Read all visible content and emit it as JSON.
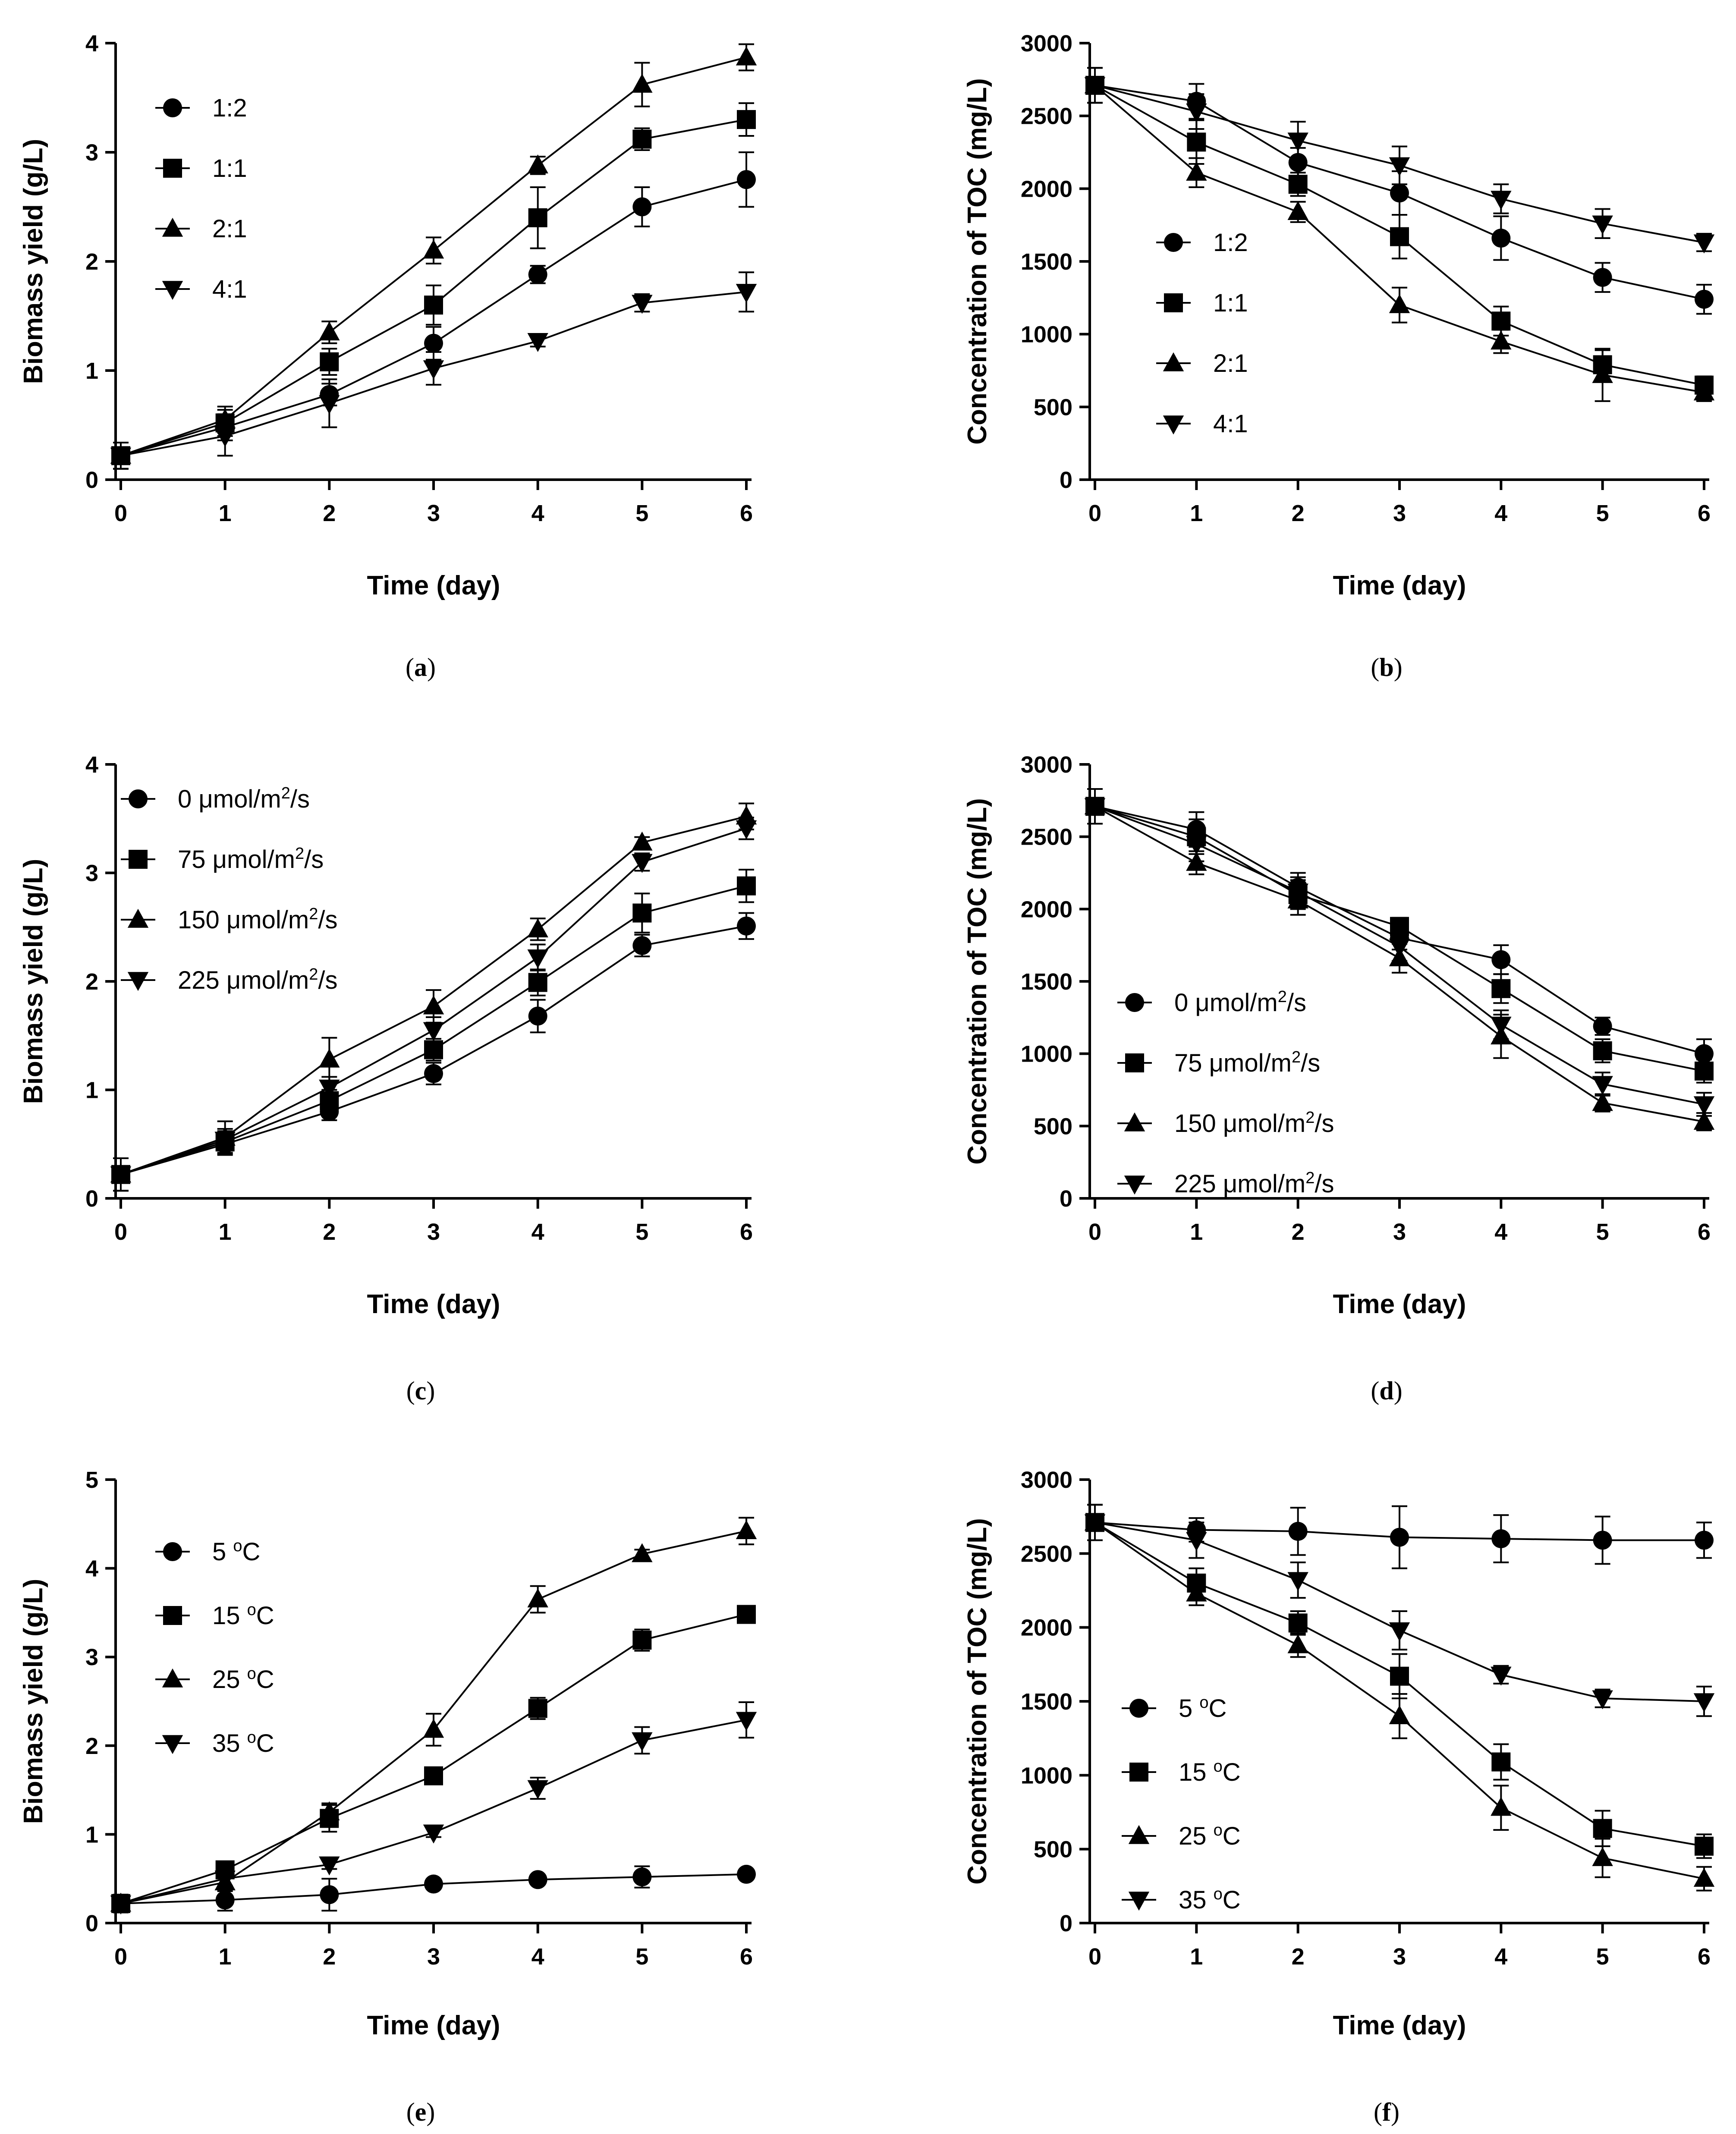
{
  "chart_data": [
    {
      "panel": "a",
      "panel_label": [
        "(",
        "a",
        ")"
      ],
      "type": "line",
      "xlabel": "Time (day)",
      "ylabel": "Biomass yield (g/L)",
      "x": [
        0,
        1,
        2,
        3,
        4,
        5,
        6
      ],
      "xticks": [
        "0",
        "1",
        "2",
        "3",
        "4",
        "5",
        "6"
      ],
      "ylim": [
        0,
        4
      ],
      "yticks": [
        "0",
        "1",
        "2",
        "3",
        "4"
      ],
      "legend_position": "top-left",
      "series": [
        {
          "name": "1:2",
          "marker": "circle",
          "values": [
            0.22,
            0.48,
            0.78,
            1.25,
            1.88,
            2.5,
            2.75
          ],
          "errors": [
            0.12,
            0.12,
            0.1,
            0.15,
            0.08,
            0.18,
            0.25
          ]
        },
        {
          "name": "1:1",
          "marker": "square",
          "values": [
            0.22,
            0.52,
            1.08,
            1.6,
            2.4,
            3.12,
            3.3
          ],
          "errors": [
            0.12,
            0.12,
            0.12,
            0.18,
            0.28,
            0.1,
            0.15
          ]
        },
        {
          "name": "2:1",
          "marker": "triangle-up",
          "values": [
            0.22,
            0.55,
            1.35,
            2.1,
            2.88,
            3.62,
            3.87
          ],
          "errors": [
            0.12,
            0.12,
            0.1,
            0.12,
            0.08,
            0.2,
            0.12
          ]
        },
        {
          "name": "4:1",
          "marker": "triangle-down",
          "values": [
            0.22,
            0.4,
            0.7,
            1.02,
            1.27,
            1.62,
            1.72
          ],
          "errors": [
            0.12,
            0.18,
            0.22,
            0.15,
            0.05,
            0.08,
            0.18
          ]
        }
      ]
    },
    {
      "panel": "b",
      "panel_label": [
        "(",
        "b",
        ")"
      ],
      "type": "line",
      "xlabel": "Time (day)",
      "ylabel": "Concentration of TOC (mg/L)",
      "x": [
        0,
        1,
        2,
        3,
        4,
        5,
        6
      ],
      "xticks": [
        "0",
        "1",
        "2",
        "3",
        "4",
        "5",
        "6"
      ],
      "ylim": [
        0,
        3000
      ],
      "yticks": [
        "0",
        "500",
        "1000",
        "1500",
        "2000",
        "2500",
        "3000"
      ],
      "legend_position": "center-left",
      "series": [
        {
          "name": "1:2",
          "marker": "circle",
          "values": [
            2710,
            2600,
            2180,
            1970,
            1660,
            1390,
            1240
          ],
          "errors": [
            120,
            120,
            100,
            150,
            150,
            100,
            100
          ]
        },
        {
          "name": "1:1",
          "marker": "square",
          "values": [
            2710,
            2320,
            2030,
            1670,
            1090,
            790,
            650
          ],
          "errors": [
            120,
            150,
            80,
            150,
            100,
            100,
            60
          ]
        },
        {
          "name": "2:1",
          "marker": "triangle-up",
          "values": [
            2710,
            2110,
            1840,
            1200,
            950,
            720,
            600
          ],
          "errors": [
            120,
            100,
            70,
            120,
            80,
            180,
            60
          ]
        },
        {
          "name": "4:1",
          "marker": "triangle-down",
          "values": [
            2710,
            2530,
            2330,
            2160,
            1930,
            1760,
            1630
          ],
          "errors": [
            120,
            120,
            130,
            130,
            100,
            100,
            60
          ]
        }
      ]
    },
    {
      "panel": "c",
      "panel_label": [
        "(",
        "c",
        ")"
      ],
      "type": "line",
      "xlabel": "Time (day)",
      "ylabel": "Biomass yield (g/L)",
      "x": [
        0,
        1,
        2,
        3,
        4,
        5,
        6
      ],
      "xticks": [
        "0",
        "1",
        "2",
        "3",
        "4",
        "5",
        "6"
      ],
      "ylim": [
        0,
        4
      ],
      "yticks": [
        "0",
        "1",
        "2",
        "3",
        "4"
      ],
      "legend_position": "top-left",
      "series": [
        {
          "name": "0 μmol/m²/s",
          "legend": [
            "0 μmol/m",
            "2",
            "/s"
          ],
          "marker": "circle",
          "values": [
            0.22,
            0.5,
            0.8,
            1.15,
            1.68,
            2.33,
            2.51
          ],
          "errors": [
            0.15,
            0.1,
            0.08,
            0.1,
            0.15,
            0.1,
            0.12
          ]
        },
        {
          "name": "75 μmol/m²/s",
          "legend": [
            "75 μmol/m",
            "2",
            "/s"
          ],
          "marker": "square",
          "values": [
            0.22,
            0.52,
            0.9,
            1.37,
            1.99,
            2.63,
            2.88
          ],
          "errors": [
            0.15,
            0.1,
            0.1,
            0.1,
            0.12,
            0.18,
            0.15
          ]
        },
        {
          "name": "150 μmol/m²/s",
          "legend": [
            "150 μmol/m",
            "2",
            "/s"
          ],
          "marker": "triangle-up",
          "values": [
            0.22,
            0.56,
            1.28,
            1.77,
            2.48,
            3.28,
            3.52
          ],
          "errors": [
            0.15,
            0.15,
            0.2,
            0.15,
            0.1,
            0.05,
            0.12
          ]
        },
        {
          "name": "225 μmol/m²/s",
          "legend": [
            "225 μmol/m",
            "2",
            "/s"
          ],
          "marker": "triangle-down",
          "values": [
            0.22,
            0.54,
            1.02,
            1.55,
            2.22,
            3.1,
            3.41
          ],
          "errors": [
            0.15,
            0.1,
            0.1,
            0.12,
            0.12,
            0.08,
            0.1
          ]
        }
      ]
    },
    {
      "panel": "d",
      "panel_label": [
        "(",
        "d",
        ")"
      ],
      "type": "line",
      "xlabel": "Time (day)",
      "ylabel": "Concentration of TOC (mg/L)",
      "x": [
        0,
        1,
        2,
        3,
        4,
        5,
        6
      ],
      "xticks": [
        "0",
        "1",
        "2",
        "3",
        "4",
        "5",
        "6"
      ],
      "ylim": [
        0,
        3000
      ],
      "yticks": [
        "0",
        "500",
        "1000",
        "1500",
        "2000",
        "2500",
        "3000"
      ],
      "legend_position": "center-left",
      "series": [
        {
          "name": "0 μmol/m²/s",
          "legend": [
            "0 μmol/m",
            "2",
            "/s"
          ],
          "marker": "circle",
          "values": [
            2710,
            2550,
            2150,
            1800,
            1650,
            1190,
            1000
          ],
          "errors": [
            120,
            120,
            100,
            80,
            100,
            60,
            100
          ]
        },
        {
          "name": "75 μmol/m²/s",
          "legend": [
            "75 μmol/m",
            "2",
            "/s"
          ],
          "marker": "square",
          "values": [
            2710,
            2500,
            2100,
            1880,
            1450,
            1020,
            880
          ],
          "errors": [
            120,
            120,
            100,
            60,
            100,
            80,
            80
          ]
        },
        {
          "name": "150 μmol/m²/s",
          "legend": [
            "150 μmol/m",
            "2",
            "/s"
          ],
          "marker": "triangle-up",
          "values": [
            2710,
            2320,
            2060,
            1660,
            1120,
            660,
            530
          ],
          "errors": [
            120,
            80,
            100,
            100,
            150,
            60,
            60
          ]
        },
        {
          "name": "225 μmol/m²/s",
          "legend": [
            "225 μmol/m",
            "2",
            "/s"
          ],
          "marker": "triangle-down",
          "values": [
            2710,
            2450,
            2120,
            1740,
            1200,
            790,
            650
          ],
          "errors": [
            120,
            120,
            100,
            100,
            100,
            80,
            80
          ]
        }
      ]
    },
    {
      "panel": "e",
      "panel_label": [
        "(",
        "e",
        ")"
      ],
      "type": "line",
      "xlabel": "Time (day)",
      "ylabel": "Biomass yield (g/L)",
      "x": [
        0,
        1,
        2,
        3,
        4,
        5,
        6
      ],
      "xticks": [
        "0",
        "1",
        "2",
        "3",
        "4",
        "5",
        "6"
      ],
      "ylim": [
        0,
        5
      ],
      "yticks": [
        "0",
        "1",
        "2",
        "3",
        "4",
        "5"
      ],
      "legend_position": "top-left",
      "series": [
        {
          "name": "5 °C",
          "legend": [
            "5 ",
            "o",
            "C"
          ],
          "marker": "circle",
          "values": [
            0.22,
            0.26,
            0.32,
            0.44,
            0.49,
            0.52,
            0.55
          ],
          "errors": [
            0.1,
            0.12,
            0.18,
            0.05,
            0.05,
            0.12,
            0.05
          ]
        },
        {
          "name": "15 °C",
          "legend": [
            "15 ",
            "o",
            "C"
          ],
          "marker": "square",
          "values": [
            0.22,
            0.6,
            1.18,
            1.66,
            2.42,
            3.19,
            3.48
          ],
          "errors": [
            0.1,
            0.08,
            0.15,
            0.05,
            0.12,
            0.12,
            0.05
          ]
        },
        {
          "name": "25 °C",
          "legend": [
            "25 ",
            "o",
            "C"
          ],
          "marker": "triangle-up",
          "values": [
            0.22,
            0.46,
            1.25,
            2.18,
            3.65,
            4.16,
            4.42
          ],
          "errors": [
            0.1,
            0.1,
            0.1,
            0.18,
            0.15,
            0.05,
            0.15
          ]
        },
        {
          "name": "35 °C",
          "legend": [
            "35 ",
            "o",
            "C"
          ],
          "marker": "triangle-down",
          "values": [
            0.22,
            0.5,
            0.66,
            1.02,
            1.52,
            2.06,
            2.29
          ],
          "errors": [
            0.1,
            0.08,
            0.05,
            0.05,
            0.12,
            0.15,
            0.2
          ]
        }
      ]
    },
    {
      "panel": "f",
      "panel_label": [
        "(",
        "f",
        ")"
      ],
      "type": "line",
      "xlabel": "Time (day)",
      "ylabel": "Concentration of TOC (mg/L)",
      "x": [
        0,
        1,
        2,
        3,
        4,
        5,
        6
      ],
      "xticks": [
        "0",
        "1",
        "2",
        "3",
        "4",
        "5",
        "6"
      ],
      "ylim": [
        0,
        3000
      ],
      "yticks": [
        "0",
        "500",
        "1000",
        "1500",
        "2000",
        "2500",
        "3000"
      ],
      "legend_position": "bottom-left",
      "series": [
        {
          "name": "5 °C",
          "legend": [
            "5 ",
            "o",
            "C"
          ],
          "marker": "circle",
          "values": [
            2710,
            2660,
            2650,
            2610,
            2600,
            2590,
            2590
          ],
          "errors": [
            120,
            80,
            160,
            210,
            160,
            160,
            120
          ]
        },
        {
          "name": "15 °C",
          "legend": [
            "15 ",
            "o",
            "C"
          ],
          "marker": "square",
          "values": [
            2710,
            2300,
            2030,
            1670,
            1090,
            640,
            520
          ],
          "errors": [
            120,
            100,
            80,
            150,
            120,
            120,
            80
          ]
        },
        {
          "name": "25 °C",
          "legend": [
            "25 ",
            "o",
            "C"
          ],
          "marker": "triangle-up",
          "values": [
            2710,
            2230,
            1880,
            1400,
            780,
            440,
            300
          ],
          "errors": [
            120,
            80,
            80,
            150,
            150,
            130,
            80
          ]
        },
        {
          "name": "35 °C",
          "legend": [
            "35 ",
            "o",
            "C"
          ],
          "marker": "triangle-down",
          "values": [
            2710,
            2590,
            2320,
            1980,
            1680,
            1520,
            1500
          ],
          "errors": [
            120,
            120,
            120,
            130,
            60,
            60,
            100
          ]
        }
      ]
    }
  ]
}
